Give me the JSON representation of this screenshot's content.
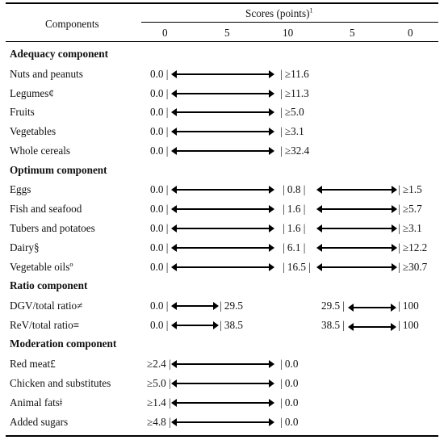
{
  "header": {
    "components": "Components",
    "scores_label": "Scores (points)",
    "scores_sup": "1",
    "scale": [
      "0",
      "5",
      "10",
      "5",
      "0"
    ]
  },
  "sections": {
    "adequacy": {
      "title": "Adequacy component",
      "rows": [
        {
          "label": "Nuts and peanuts",
          "left": "0.0 |",
          "mid": "| ≥11.6"
        },
        {
          "label": "Legumes¢",
          "left": "0.0 |",
          "mid": "| ≥11.3"
        },
        {
          "label": "Fruits",
          "left": "0.0 |",
          "mid": "| ≥5.0"
        },
        {
          "label": "Vegetables",
          "left": "0.0 |",
          "mid": "| ≥3.1"
        },
        {
          "label": "Whole cereals",
          "left": "0.0 |",
          "mid": "| ≥32.4"
        }
      ]
    },
    "optimum": {
      "title": "Optimum component",
      "rows": [
        {
          "label": "Eggs",
          "left": "0.0 |",
          "mid": "| 0.8 |",
          "right": "| ≥1.5"
        },
        {
          "label": "Fish and seafood",
          "left": "0.0 |",
          "mid": "| 1.6 |",
          "right": "| ≥5.7"
        },
        {
          "label": "Tubers and potatoes",
          "left": "0.0 |",
          "mid": "| 1.6 |",
          "right": "| ≥3.1"
        },
        {
          "label": "Dairy§",
          "left": "0.0 |",
          "mid": "| 6.1 |",
          "right": "| ≥12.2"
        },
        {
          "label": "Vegetable oilsº",
          "left": "0.0 |",
          "mid": "| 16.5 |",
          "right": "| ≥30.7"
        }
      ]
    },
    "ratio": {
      "title": "Ratio component",
      "rows": [
        {
          "label": "DGV/total ratio≠",
          "left": "0.0 |",
          "mid": "| 29.5",
          "right_start": "29.5 |",
          "right": "| 100"
        },
        {
          "label": "ReV/total ratio≡",
          "left": "0.0 |",
          "mid": "| 38.5",
          "right_start": "38.5 |",
          "right": "| 100"
        }
      ]
    },
    "moderation": {
      "title": "Moderation component",
      "rows": [
        {
          "label": "Red meat£",
          "left": "≥2.4 |",
          "mid": "| 0.0"
        },
        {
          "label": "Chicken and substitutes",
          "left": "≥5.0 |",
          "mid": "| 0.0"
        },
        {
          "label": "Animal fatsǂ",
          "left": "≥1.4 |",
          "mid": "| 0.0"
        },
        {
          "label": "Added sugars",
          "left": "≥4.8 |",
          "mid": "| 0.0"
        }
      ]
    }
  }
}
